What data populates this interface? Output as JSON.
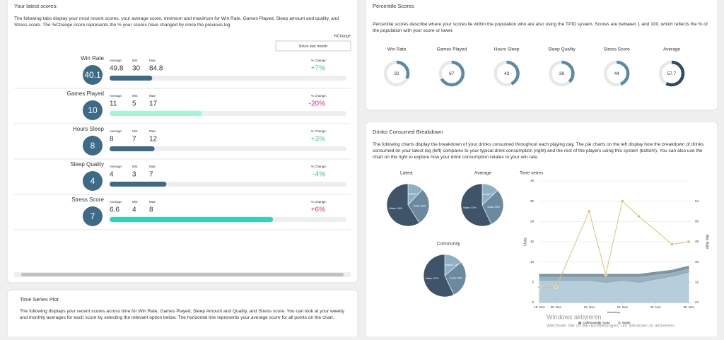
{
  "left_panel": {
    "title": "Your latest scores:",
    "description": "The following tabs display your most recent scores, your average score, minimum and maximum for Win Rate, Games Played, Sleep amount and quality, and Stress score. The %Change score represents the % your scores have changed by since the previous log",
    "change_label": "%Change",
    "dropdown": "Since last month",
    "stat_labels": {
      "average": "Average:",
      "min": "Min:",
      "max": "Max:",
      "change": "% Change:"
    },
    "metrics": [
      {
        "name": "Win Rate",
        "score": 40.1,
        "average": 49.8,
        "min": 30,
        "max": 84.8,
        "change": "+7%",
        "change_color": "#3cc4b4",
        "bar": 18,
        "bar_color": "#3d6a85"
      },
      {
        "name": "Games Played",
        "score": 10,
        "average": 11,
        "min": 5,
        "max": 17,
        "change": "-20%",
        "change_color": "#d6337e",
        "bar": 39,
        "bar_color": "#a3f5d3"
      },
      {
        "name": "Hours Sleep",
        "score": 8,
        "average": 8,
        "min": 7,
        "max": 12,
        "change": "+3%",
        "change_color": "#3cc4b4",
        "bar": 19,
        "bar_color": "#3d6a85"
      },
      {
        "name": "Sleep Quality",
        "score": 4,
        "average": 4,
        "min": 3,
        "max": 7,
        "change": "-4%",
        "change_color": "#3cc4b4",
        "bar": 24,
        "bar_color": "#3d6a85"
      },
      {
        "name": "Stress Score",
        "score": 7,
        "average": 6.6,
        "min": 4,
        "max": 8,
        "change": "+6%",
        "change_color": "#d6337e",
        "bar": 69,
        "bar_color": "#2fd6b6"
      }
    ]
  },
  "time_series_panel": {
    "title": "Time Series Plot",
    "description": "The following displays your recent scores across time for Win Rate, Games Played, Sleep Amount and Quality, and Stress score. You can look at your weekly and monthly averages for each score by selecting the relevant option below. The horizontal line represents your average score for all points on the chart."
  },
  "percentile_panel": {
    "title": "Percentile Scores",
    "description": "Percentile scores describe where your scores lie within the population who are also using the TPID system. Scores are between 1 and 100, which reflects the % of the population with your score or lower.",
    "items": [
      {
        "name": "Win Rate",
        "value": 32,
        "color": "#5b8aa6"
      },
      {
        "name": "Games Played",
        "value": 67,
        "color": "#5b8aa6"
      },
      {
        "name": "Hours Sleep",
        "value": 43,
        "color": "#5b8aa6"
      },
      {
        "name": "Sleep Quality",
        "value": 38,
        "color": "#5b8aa6"
      },
      {
        "name": "Stress Score",
        "value": 44,
        "color": "#5b8aa6"
      },
      {
        "name": "Average",
        "value": 57.7,
        "color": "#2f4a63"
      }
    ]
  },
  "drinks_panel": {
    "title": "Drinks Consumed Breakdown",
    "description": "The following charts display the breakdown of your drinks consumed throughout each playing day. The pie charts on the left display how the breakdown of drinks consumed on your latest log (left) compares to your typical drink consumption (right) and the rest of the players using this system (bottom). You can also use the chart on the right to explore how your drink consumption relates to your win rate.",
    "pies": [
      {
        "type": "pie",
        "title": "Latest",
        "labels": [
          "Caffeinated",
          "Soda",
          "Water"
        ],
        "values": [
          12,
          29,
          59
        ],
        "value_labels": [
          "Caffeinated: 12%",
          "Soda: 29%",
          "Water: 59%"
        ],
        "colors": [
          "#8fb0c4",
          "#6b8aa0",
          "#3f5369"
        ]
      },
      {
        "type": "pie",
        "title": "Average",
        "labels": [
          "Caffeinated",
          "Soda",
          "Water"
        ],
        "values": [
          13,
          30,
          57
        ],
        "value_labels": [
          "Caffeinated: 13%",
          "Soda: 30%",
          "Water: 57%"
        ],
        "colors": [
          "#8fb0c4",
          "#6b8aa0",
          "#3f5369"
        ]
      },
      {
        "type": "pie",
        "title": "Community",
        "labels": [
          "Caffeinated",
          "Soda",
          "Water"
        ],
        "values": [
          14,
          29,
          57
        ],
        "value_labels": [
          "Caffeinated: 14%",
          "Soda: 29%",
          "Water: 57%"
        ],
        "colors": [
          "#8fb0c4",
          "#6b8aa0",
          "#3f5369"
        ]
      }
    ]
  },
  "chart_data": {
    "type": "area",
    "title": "Time series",
    "x_label": "timestamp",
    "y_label": "Units",
    "y2_label": "Win Rate",
    "x": [
      19,
      20,
      22,
      23,
      24,
      25,
      27,
      28
    ],
    "xlim": [
      19,
      28
    ],
    "xticks": [
      {
        "value": 19,
        "label": "19. Nov"
      },
      {
        "value": 20,
        "label": "20. Nov"
      },
      {
        "value": 22,
        "label": "22. Nov"
      },
      {
        "value": 24,
        "label": "24. Nov"
      },
      {
        "value": 26,
        "label": "26. Nov"
      },
      {
        "value": 28,
        "label": "28. Nov"
      }
    ],
    "ylim": [
      0,
      30
    ],
    "yticks": [
      0,
      5,
      10,
      15,
      20,
      25,
      30
    ],
    "y2lim": [
      24,
      72
    ],
    "y2ticks": [
      24,
      32,
      40,
      48,
      56,
      64
    ],
    "grid": true,
    "series": [
      {
        "name": "Caffeinated",
        "color": "#6f8797",
        "values": [
          0.5,
          0.5,
          0.5,
          0.5,
          0.5,
          0.5,
          0.5,
          0.5
        ]
      },
      {
        "name": "Soda",
        "color": "#8aa3b5",
        "values": [
          1,
          1,
          1,
          1.5,
          1,
          1.5,
          1,
          1
        ]
      },
      {
        "name": "Water",
        "color": "#a9c4d6",
        "values": [
          5.5,
          5.5,
          5.5,
          5,
          5.5,
          5,
          6.5,
          7.5
        ]
      },
      {
        "name": "Win Rate",
        "type": "line",
        "axis": "y2",
        "color": "#d9c17c",
        "values": [
          30,
          30,
          60,
          35,
          64,
          58,
          47,
          48
        ]
      }
    ]
  },
  "watermark": {
    "title": "Windows aktivieren",
    "text": "Wechseln Sie zu den Einstellungen, um Windows zu aktivieren."
  }
}
